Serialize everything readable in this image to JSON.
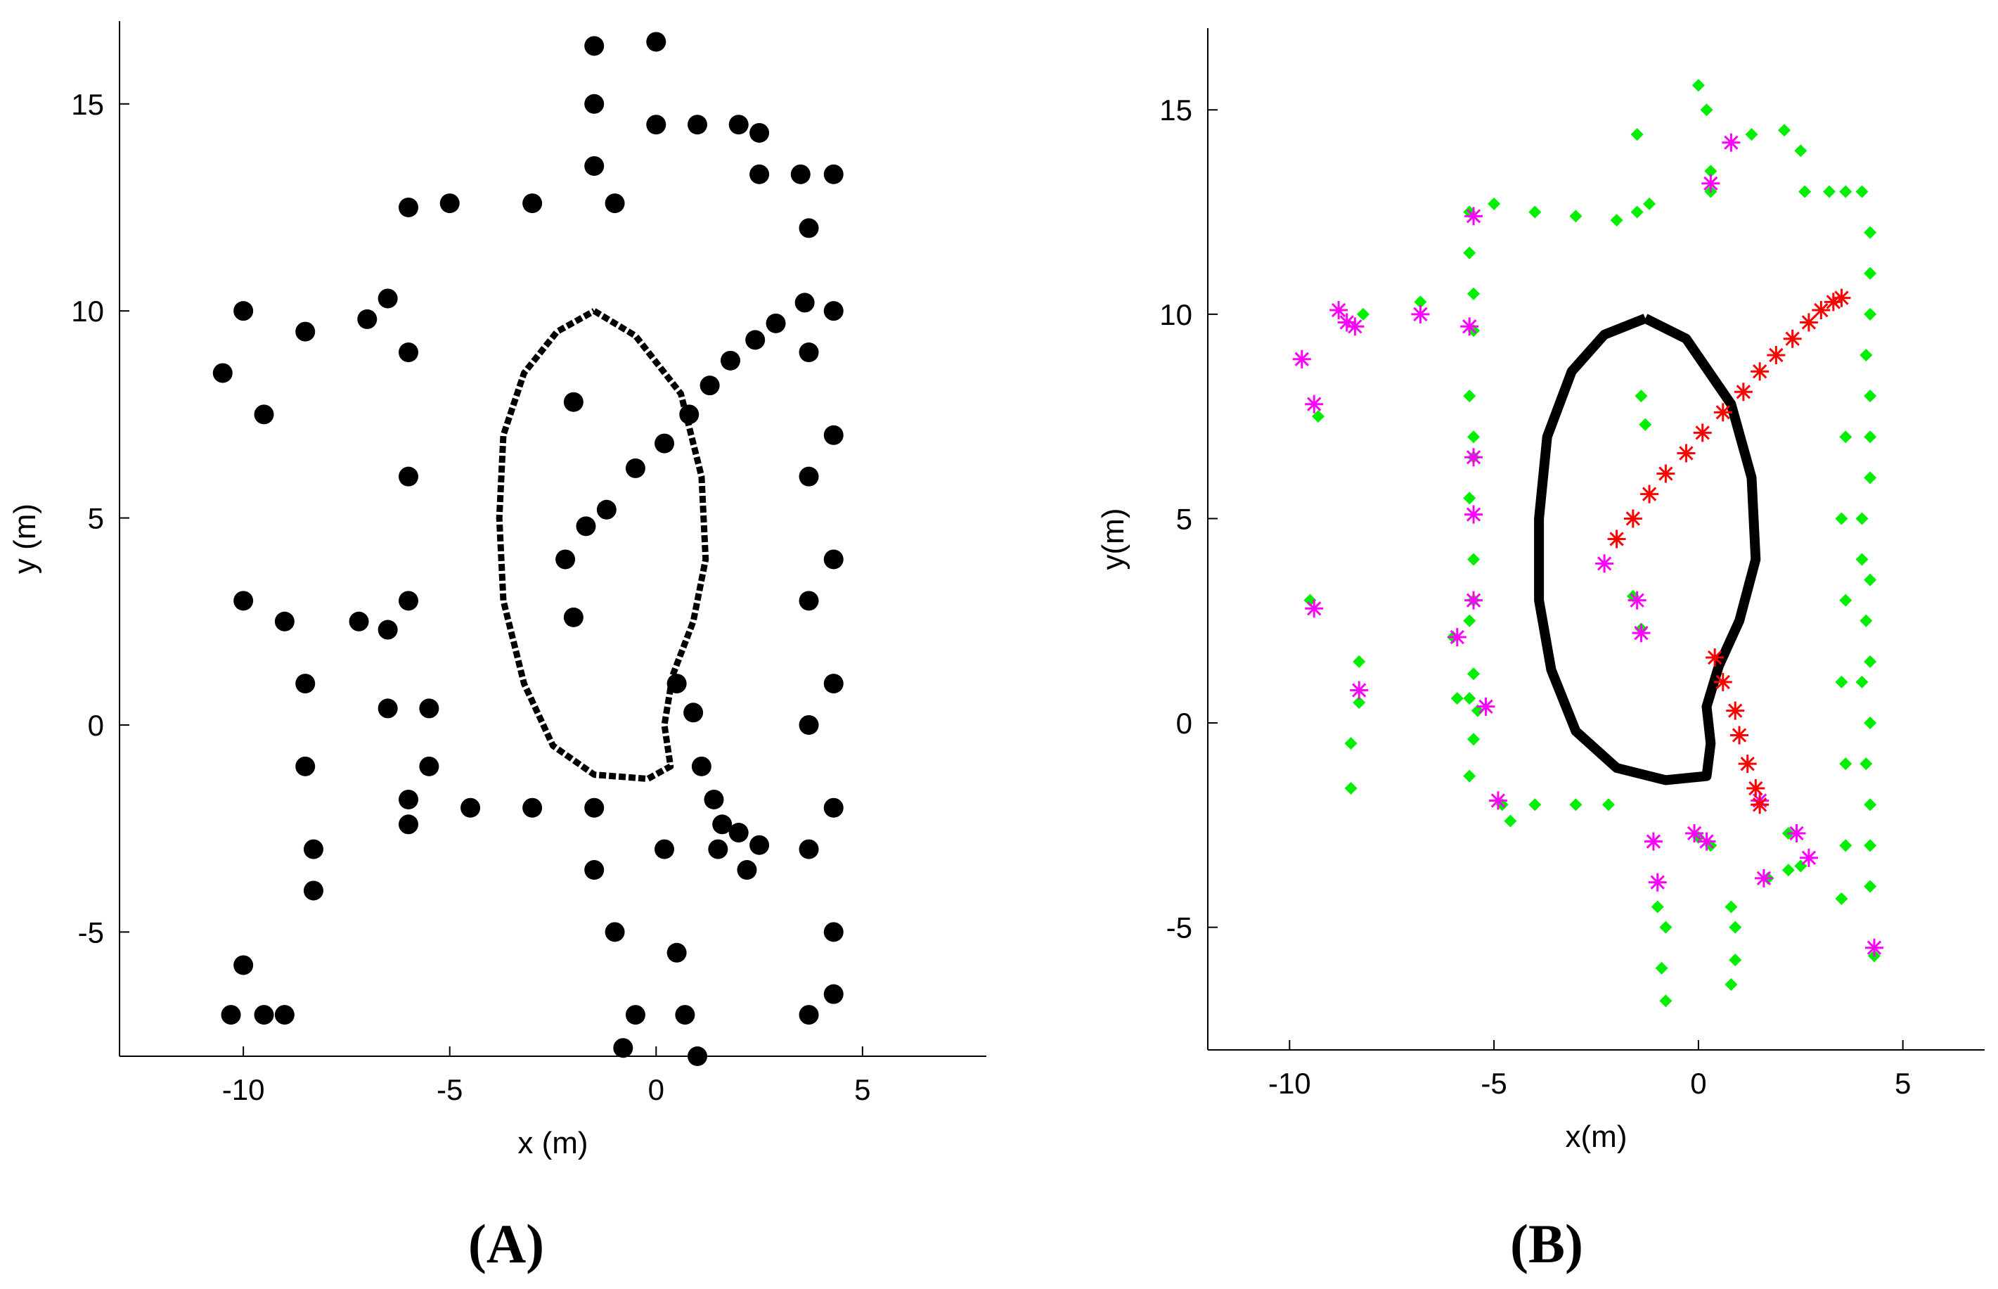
{
  "figure": {
    "panel_labels": [
      "(A)",
      "(B)"
    ]
  },
  "chart_data": [
    {
      "type": "scatter",
      "panel": "(A)",
      "xlabel": "x (m)",
      "ylabel": "y (m)",
      "xlim": [
        -13,
        8
      ],
      "ylim": [
        -8,
        17
      ],
      "xticks": [
        -10,
        -5,
        0,
        5
      ],
      "yticks": [
        -5,
        0,
        5,
        10,
        15
      ],
      "xtick_labels": [
        "-10",
        "-5",
        "0",
        "5"
      ],
      "ytick_labels": [
        "-5",
        "0",
        "5",
        "10",
        "15"
      ],
      "grid": false,
      "series": [
        {
          "color": "#000000",
          "marker": "dot",
          "description": "laser scan map points",
          "points": [
            [
              -6.0,
              -2.4
            ],
            [
              -6.0,
              3.0
            ],
            [
              -6.0,
              6.0
            ],
            [
              -6.0,
              9.0
            ],
            [
              -6.0,
              12.5
            ],
            [
              -5.0,
              12.6
            ],
            [
              -3.0,
              12.6
            ],
            [
              -1.0,
              12.6
            ],
            [
              -1.5,
              13.5
            ],
            [
              -1.5,
              15.0
            ],
            [
              -1.5,
              16.4
            ],
            [
              0.0,
              14.5
            ],
            [
              0.0,
              16.5
            ],
            [
              1.0,
              14.5
            ],
            [
              2.0,
              14.5
            ],
            [
              2.5,
              14.3
            ],
            [
              2.5,
              13.3
            ],
            [
              3.5,
              13.3
            ],
            [
              4.3,
              13.3
            ],
            [
              4.3,
              10.0
            ],
            [
              4.3,
              7.0
            ],
            [
              4.3,
              4.0
            ],
            [
              4.3,
              1.0
            ],
            [
              4.3,
              -2.0
            ],
            [
              4.3,
              -5.0
            ],
            [
              4.3,
              -6.5
            ],
            [
              3.7,
              12.0
            ],
            [
              3.7,
              9.0
            ],
            [
              3.7,
              6.0
            ],
            [
              3.7,
              3.0
            ],
            [
              3.7,
              0.0
            ],
            [
              3.7,
              -3.0
            ],
            [
              3.7,
              -7.0
            ],
            [
              -6.0,
              -1.8
            ],
            [
              -4.5,
              -2.0
            ],
            [
              -3.0,
              -2.0
            ],
            [
              -1.5,
              -2.0
            ],
            [
              -1.5,
              -3.5
            ],
            [
              -1.0,
              -5.0
            ],
            [
              -0.5,
              -7.0
            ],
            [
              -0.8,
              -7.8
            ],
            [
              0.2,
              -3.0
            ],
            [
              0.5,
              -5.5
            ],
            [
              0.7,
              -7.0
            ],
            [
              1.0,
              -8.0
            ],
            [
              1.5,
              -3.0
            ],
            [
              2.2,
              -3.5
            ],
            [
              2.5,
              -2.9
            ],
            [
              2.0,
              -2.6
            ],
            [
              -6.5,
              0.4
            ],
            [
              -5.5,
              0.4
            ],
            [
              -5.5,
              -1.0
            ],
            [
              -6.5,
              2.3
            ],
            [
              -7.2,
              2.5
            ],
            [
              -10.0,
              3.0
            ],
            [
              -9.0,
              2.5
            ],
            [
              -8.5,
              1.0
            ],
            [
              -8.5,
              -1.0
            ],
            [
              -8.3,
              -3.0
            ],
            [
              -8.3,
              -4.0
            ],
            [
              -10.5,
              8.5
            ],
            [
              -10.0,
              10.0
            ],
            [
              -9.5,
              7.5
            ],
            [
              -8.5,
              9.5
            ],
            [
              -7.0,
              9.8
            ],
            [
              -6.5,
              10.3
            ],
            [
              -10.0,
              -5.8
            ],
            [
              -10.3,
              -7.0
            ],
            [
              -9.5,
              -7.0
            ],
            [
              -9.0,
              -7.0
            ],
            [
              -2.0,
              7.8
            ],
            [
              -2.0,
              2.6
            ],
            [
              -2.2,
              4.0
            ],
            [
              -1.7,
              4.8
            ],
            [
              -1.2,
              5.2
            ],
            [
              -0.5,
              6.2
            ],
            [
              0.2,
              6.8
            ],
            [
              0.8,
              7.5
            ],
            [
              1.3,
              8.2
            ],
            [
              1.8,
              8.8
            ],
            [
              2.4,
              9.3
            ],
            [
              2.9,
              9.7
            ],
            [
              3.6,
              10.2
            ],
            [
              0.5,
              1.0
            ],
            [
              0.9,
              0.3
            ],
            [
              1.1,
              -1.0
            ],
            [
              1.4,
              -1.8
            ],
            [
              1.6,
              -2.4
            ]
          ]
        }
      ],
      "loop": [
        [
          -1.5,
          10.0
        ],
        [
          -0.5,
          9.4
        ],
        [
          0.6,
          8.0
        ],
        [
          1.1,
          6.0
        ],
        [
          1.2,
          4.0
        ],
        [
          0.9,
          2.5
        ],
        [
          0.4,
          1.2
        ],
        [
          0.2,
          0.0
        ],
        [
          0.35,
          -1.0
        ],
        [
          -0.2,
          -1.3
        ],
        [
          -1.5,
          -1.2
        ],
        [
          -2.5,
          -0.5
        ],
        [
          -3.2,
          1.0
        ],
        [
          -3.7,
          3.0
        ],
        [
          -3.8,
          5.0
        ],
        [
          -3.7,
          7.0
        ],
        [
          -3.2,
          8.5
        ],
        [
          -2.4,
          9.5
        ]
      ]
    },
    {
      "type": "scatter",
      "panel": "(B)",
      "xlabel": "x(m)",
      "ylabel": "y(m)",
      "xlim": [
        -12,
        7
      ],
      "ylim": [
        -8,
        17
      ],
      "xticks": [
        -10,
        -5,
        0,
        5
      ],
      "yticks": [
        -5,
        0,
        5,
        10,
        15
      ],
      "xtick_labels": [
        "-10",
        "-5",
        "0",
        "5"
      ],
      "ytick_labels": [
        "-5",
        "0",
        "5",
        "10",
        "15"
      ],
      "grid": false,
      "series": [
        {
          "color": "#00ee00",
          "marker": "diamond",
          "description": "feature points",
          "points": [
            [
              -5.6,
              12.5
            ],
            [
              -5.6,
              11.5
            ],
            [
              -5.5,
              10.5
            ],
            [
              -5.5,
              9.6
            ],
            [
              -5.6,
              8.0
            ],
            [
              -5.5,
              7.0
            ],
            [
              -5.5,
              6.5
            ],
            [
              -5.6,
              5.5
            ],
            [
              -5.5,
              4.0
            ],
            [
              -5.5,
              3.0
            ],
            [
              -5.6,
              2.5
            ],
            [
              -5.5,
              1.2
            ],
            [
              -5.6,
              0.6
            ],
            [
              -5.4,
              0.3
            ],
            [
              -5.5,
              -0.4
            ],
            [
              -5.6,
              -1.3
            ],
            [
              -5.0,
              12.7
            ],
            [
              -4.0,
              12.5
            ],
            [
              -3.0,
              12.4
            ],
            [
              -2.0,
              12.3
            ],
            [
              -1.5,
              12.5
            ],
            [
              -1.2,
              12.7
            ],
            [
              -1.5,
              14.4
            ],
            [
              0.0,
              15.6
            ],
            [
              0.2,
              15.0
            ],
            [
              0.3,
              13.5
            ],
            [
              0.3,
              13.0
            ],
            [
              1.3,
              14.4
            ],
            [
              2.1,
              14.5
            ],
            [
              2.5,
              14.0
            ],
            [
              2.6,
              13.0
            ],
            [
              3.2,
              13.0
            ],
            [
              3.6,
              13.0
            ],
            [
              4.0,
              13.0
            ],
            [
              4.2,
              12.0
            ],
            [
              4.2,
              11.0
            ],
            [
              4.2,
              10.0
            ],
            [
              4.1,
              9.0
            ],
            [
              4.2,
              8.0
            ],
            [
              4.2,
              7.0
            ],
            [
              4.2,
              6.0
            ],
            [
              4.0,
              5.0
            ],
            [
              4.0,
              4.0
            ],
            [
              4.2,
              3.5
            ],
            [
              4.1,
              2.5
            ],
            [
              4.2,
              1.5
            ],
            [
              4.0,
              1.0
            ],
            [
              4.2,
              0.0
            ],
            [
              4.1,
              -1.0
            ],
            [
              4.2,
              -2.0
            ],
            [
              4.2,
              -3.0
            ],
            [
              4.2,
              -4.0
            ],
            [
              4.3,
              -5.7
            ],
            [
              3.6,
              7.0
            ],
            [
              3.5,
              5.0
            ],
            [
              3.6,
              3.0
            ],
            [
              3.5,
              1.0
            ],
            [
              3.6,
              -1.0
            ],
            [
              3.6,
              -3.0
            ],
            [
              3.5,
              -4.3
            ],
            [
              -4.8,
              -2.0
            ],
            [
              -4.0,
              -2.0
            ],
            [
              -3.0,
              -2.0
            ],
            [
              -2.2,
              -2.0
            ],
            [
              -4.6,
              -2.4
            ],
            [
              -6.8,
              10.3
            ],
            [
              -8.2,
              10.0
            ],
            [
              -9.3,
              7.5
            ],
            [
              -9.5,
              3.0
            ],
            [
              -8.3,
              1.5
            ],
            [
              -8.3,
              0.5
            ],
            [
              -8.5,
              -0.5
            ],
            [
              -8.5,
              -1.6
            ],
            [
              -1.4,
              8.0
            ],
            [
              -1.3,
              7.3
            ],
            [
              -1.6,
              3.1
            ],
            [
              -1.4,
              2.3
            ],
            [
              -6.0,
              2.1
            ],
            [
              -5.9,
              0.6
            ],
            [
              -1.0,
              -4.5
            ],
            [
              -0.8,
              -5.0
            ],
            [
              -0.9,
              -6.0
            ],
            [
              -0.8,
              -6.8
            ],
            [
              0.0,
              -2.8
            ],
            [
              0.3,
              -3.0
            ],
            [
              0.8,
              -4.5
            ],
            [
              0.9,
              -5.0
            ],
            [
              0.9,
              -5.8
            ],
            [
              0.8,
              -6.4
            ],
            [
              1.7,
              -3.8
            ],
            [
              2.2,
              -3.6
            ],
            [
              2.5,
              -3.5
            ],
            [
              2.2,
              -2.7
            ]
          ]
        },
        {
          "color": "#ff00ff",
          "marker": "asterisk",
          "description": "feature points",
          "points": [
            [
              -5.5,
              12.4
            ],
            [
              -5.6,
              9.7
            ],
            [
              -5.5,
              6.5
            ],
            [
              -5.5,
              5.1
            ],
            [
              -5.5,
              3.0
            ],
            [
              -5.2,
              0.4
            ],
            [
              -4.9,
              -1.9
            ],
            [
              -9.7,
              8.9
            ],
            [
              -9.4,
              7.8
            ],
            [
              -9.4,
              2.8
            ],
            [
              -8.8,
              10.1
            ],
            [
              -8.6,
              9.8
            ],
            [
              -8.4,
              9.7
            ],
            [
              -6.8,
              10.0
            ],
            [
              -8.3,
              0.8
            ],
            [
              -5.9,
              2.1
            ],
            [
              -2.3,
              3.9
            ],
            [
              -1.4,
              2.2
            ],
            [
              -1.5,
              3.0
            ],
            [
              0.8,
              14.2
            ],
            [
              0.3,
              13.2
            ],
            [
              -1.1,
              -2.9
            ],
            [
              -1.0,
              -3.9
            ],
            [
              -0.1,
              -2.7
            ],
            [
              0.2,
              -2.9
            ],
            [
              1.6,
              -3.8
            ],
            [
              2.4,
              -2.7
            ],
            [
              2.7,
              -3.3
            ],
            [
              4.3,
              -5.5
            ],
            [
              1.5,
              -1.9
            ]
          ]
        },
        {
          "color": "#ff0000",
          "marker": "asterisk",
          "description": "trajectory points",
          "points": [
            [
              -2.0,
              4.5
            ],
            [
              -1.6,
              5.0
            ],
            [
              -1.2,
              5.6
            ],
            [
              -0.8,
              6.1
            ],
            [
              -0.3,
              6.6
            ],
            [
              0.1,
              7.1
            ],
            [
              0.6,
              7.6
            ],
            [
              1.1,
              8.1
            ],
            [
              1.5,
              8.6
            ],
            [
              1.9,
              9.0
            ],
            [
              2.3,
              9.4
            ],
            [
              2.7,
              9.8
            ],
            [
              3.0,
              10.1
            ],
            [
              3.3,
              10.3
            ],
            [
              3.5,
              10.4
            ],
            [
              0.4,
              1.6
            ],
            [
              0.6,
              1.0
            ],
            [
              0.9,
              0.3
            ],
            [
              1.0,
              -0.3
            ],
            [
              1.2,
              -1.0
            ],
            [
              1.4,
              -1.6
            ],
            [
              1.5,
              -2.0
            ]
          ]
        }
      ],
      "loop": [
        [
          -1.3,
          9.9
        ],
        [
          -0.3,
          9.4
        ],
        [
          0.8,
          7.8
        ],
        [
          1.3,
          6.0
        ],
        [
          1.4,
          4.0
        ],
        [
          1.0,
          2.5
        ],
        [
          0.5,
          1.4
        ],
        [
          0.2,
          0.4
        ],
        [
          0.3,
          -0.5
        ],
        [
          0.2,
          -1.3
        ],
        [
          -0.8,
          -1.4
        ],
        [
          -2.0,
          -1.1
        ],
        [
          -3.0,
          -0.2
        ],
        [
          -3.6,
          1.3
        ],
        [
          -3.9,
          3.0
        ],
        [
          -3.9,
          5.0
        ],
        [
          -3.7,
          7.0
        ],
        [
          -3.1,
          8.6
        ],
        [
          -2.3,
          9.5
        ]
      ]
    }
  ]
}
